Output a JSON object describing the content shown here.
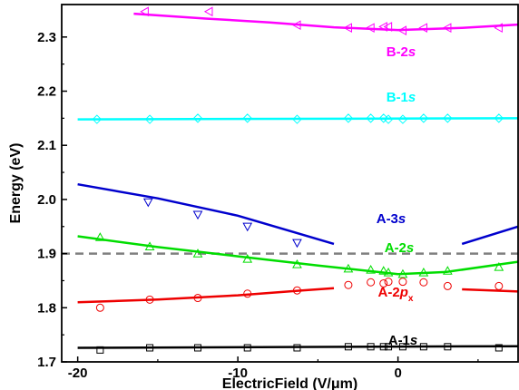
{
  "chart_data": {
    "type": "scatter",
    "xlabel": "ElectricField  (V/μm)",
    "ylabel": "Energy (eV)",
    "xlim": [
      -21,
      7.5
    ],
    "ylim": [
      1.7,
      2.36
    ],
    "x_ticks": [
      -20,
      -10,
      0
    ],
    "y_ticks": [
      1.7,
      1.8,
      1.9,
      2.0,
      2.1,
      2.2,
      2.3
    ],
    "y_tick_labels": [
      "1.7",
      "1.8",
      "1.9",
      "2.0",
      "2.1",
      "2.2",
      "2.3"
    ],
    "x_tick_labels": [
      "-20",
      "-10",
      "0"
    ],
    "reference_line": {
      "y": 1.9,
      "style": "dashed",
      "color": "#808080"
    },
    "series": [
      {
        "name": "B-2s",
        "label_main": "B-2",
        "label_italic": "s",
        "color": "#ff00ff",
        "marker": "triangle-left",
        "points": [
          [
            -15.8,
            2.347
          ],
          [
            -11.8,
            2.347
          ],
          [
            -6.3,
            2.322
          ],
          [
            -3.1,
            2.317
          ],
          [
            -1.7,
            2.317
          ],
          [
            -0.9,
            2.319
          ],
          [
            -0.6,
            2.319
          ],
          [
            0.3,
            2.312
          ],
          [
            1.6,
            2.317
          ],
          [
            3.1,
            2.317
          ],
          [
            6.3,
            2.317
          ]
        ],
        "fit": [
          [
            -16.5,
            2.343
          ],
          [
            -12,
            2.334
          ],
          [
            -8,
            2.327
          ],
          [
            -4,
            2.318
          ],
          [
            0,
            2.313
          ],
          [
            4,
            2.317
          ],
          [
            7.5,
            2.323
          ]
        ]
      },
      {
        "name": "B-1s",
        "label_main": "B-1",
        "label_italic": "s",
        "color": "#00ffff",
        "marker": "diamond",
        "points": [
          [
            -18.8,
            2.148
          ],
          [
            -15.5,
            2.148
          ],
          [
            -12.5,
            2.15
          ],
          [
            -9.4,
            2.15
          ],
          [
            -6.3,
            2.148
          ],
          [
            -3.1,
            2.15
          ],
          [
            -1.7,
            2.15
          ],
          [
            -0.9,
            2.15
          ],
          [
            -0.6,
            2.148
          ],
          [
            0.3,
            2.148
          ],
          [
            1.6,
            2.15
          ],
          [
            3.1,
            2.15
          ],
          [
            6.3,
            2.15
          ]
        ],
        "fit": [
          [
            -20,
            2.148
          ],
          [
            7.5,
            2.15
          ]
        ]
      },
      {
        "name": "A-3s",
        "label_main": "A-3",
        "label_italic": "s",
        "color": "#0000cd",
        "marker": "triangle-down",
        "points": [
          [
            -15.6,
            1.995
          ],
          [
            -12.5,
            1.972
          ],
          [
            -9.4,
            1.95
          ],
          [
            -6.3,
            1.92
          ]
        ],
        "fit": [
          [
            -20,
            2.028
          ],
          [
            -15,
            2.002
          ],
          [
            -10,
            1.97
          ],
          [
            -4,
            1.918
          ]
        ],
        "fit2": [
          [
            4,
            1.918
          ],
          [
            7.5,
            1.95
          ]
        ]
      },
      {
        "name": "A-2s",
        "label_main": "A-2",
        "label_italic": "s",
        "color": "#00dd00",
        "marker": "triangle-up",
        "points": [
          [
            -18.6,
            1.93
          ],
          [
            -15.5,
            1.913
          ],
          [
            -12.5,
            1.9
          ],
          [
            -9.4,
            1.89
          ],
          [
            -6.3,
            1.88
          ],
          [
            -3.1,
            1.872
          ],
          [
            -1.7,
            1.87
          ],
          [
            -0.9,
            1.868
          ],
          [
            -0.6,
            1.865
          ],
          [
            0.3,
            1.862
          ],
          [
            1.6,
            1.865
          ],
          [
            3.1,
            1.868
          ],
          [
            6.3,
            1.875
          ]
        ],
        "fit": [
          [
            -20,
            1.932
          ],
          [
            -15,
            1.912
          ],
          [
            -10,
            1.895
          ],
          [
            -5,
            1.878
          ],
          [
            0,
            1.862
          ],
          [
            3,
            1.866
          ],
          [
            7.5,
            1.885
          ]
        ]
      },
      {
        "name": "A-2px",
        "label_main": "A-2",
        "label_italic": "p",
        "label_sub": "x",
        "color": "#ee0000",
        "marker": "circle",
        "points": [
          [
            -18.6,
            1.8
          ],
          [
            -15.5,
            1.815
          ],
          [
            -12.5,
            1.818
          ],
          [
            -9.4,
            1.826
          ],
          [
            -6.3,
            1.832
          ],
          [
            -3.1,
            1.842
          ],
          [
            -1.7,
            1.847
          ],
          [
            -0.9,
            1.845
          ],
          [
            -0.6,
            1.848
          ],
          [
            0.3,
            1.848
          ],
          [
            1.6,
            1.847
          ],
          [
            3.1,
            1.84
          ],
          [
            6.3,
            1.84
          ]
        ],
        "fit": [
          [
            -20,
            1.81
          ],
          [
            -15,
            1.815
          ],
          [
            -10,
            1.823
          ],
          [
            -6,
            1.832
          ],
          [
            -4,
            1.836
          ]
        ],
        "fit2": [
          [
            4,
            1.834
          ],
          [
            7.5,
            1.83
          ]
        ]
      },
      {
        "name": "A-1s",
        "label_main": "A-1",
        "label_italic": "s",
        "color": "#000000",
        "marker": "square",
        "points": [
          [
            -18.6,
            1.722
          ],
          [
            -15.5,
            1.726
          ],
          [
            -12.5,
            1.726
          ],
          [
            -9.4,
            1.726
          ],
          [
            -6.3,
            1.726
          ],
          [
            -3.1,
            1.728
          ],
          [
            -1.7,
            1.728
          ],
          [
            -0.9,
            1.728
          ],
          [
            -0.6,
            1.728
          ],
          [
            0.3,
            1.728
          ],
          [
            1.6,
            1.728
          ],
          [
            3.1,
            1.728
          ],
          [
            6.3,
            1.726
          ]
        ],
        "fit": [
          [
            -20,
            1.726
          ],
          [
            7.5,
            1.729
          ]
        ]
      }
    ]
  }
}
